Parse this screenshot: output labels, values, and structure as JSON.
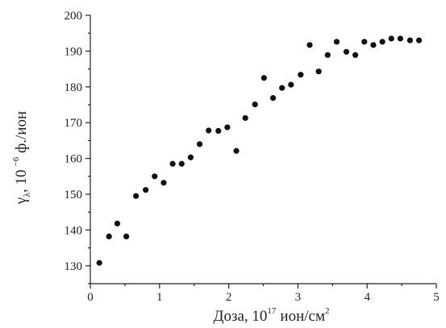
{
  "chart_data": {
    "type": "scatter",
    "title": "",
    "xlabel": {
      "prefix": "Доза, 10",
      "exponent": "17",
      "unit": "ион/см",
      "unit_power": "2"
    },
    "ylabel": {
      "symbol": "γ",
      "subscript": "λ",
      "middle": ", 10",
      "exponent": "−6",
      "unit": " ф./ион"
    },
    "xlim": [
      0,
      5
    ],
    "ylim": [
      125,
      200
    ],
    "x_ticks": [
      0,
      1,
      2,
      3,
      4,
      5
    ],
    "x_tick_labels": [
      "0",
      "1",
      "2",
      "3",
      "4",
      "5"
    ],
    "y_ticks": [
      130,
      140,
      150,
      160,
      170,
      180,
      190,
      200
    ],
    "y_tick_labels": [
      "130",
      "140",
      "150",
      "160",
      "170",
      "180",
      "190",
      "200"
    ],
    "grid": false,
    "marker_color": "#111111",
    "series": [
      {
        "points": [
          {
            "x": 0.13,
            "y": 130.8
          },
          {
            "x": 0.27,
            "y": 138.2
          },
          {
            "x": 0.39,
            "y": 141.8
          },
          {
            "x": 0.52,
            "y": 138.2
          },
          {
            "x": 0.66,
            "y": 149.5
          },
          {
            "x": 0.8,
            "y": 151.2
          },
          {
            "x": 0.93,
            "y": 155.0
          },
          {
            "x": 1.06,
            "y": 153.2
          },
          {
            "x": 1.19,
            "y": 158.5
          },
          {
            "x": 1.32,
            "y": 158.5
          },
          {
            "x": 1.45,
            "y": 160.3
          },
          {
            "x": 1.58,
            "y": 164.0
          },
          {
            "x": 1.71,
            "y": 167.8
          },
          {
            "x": 1.85,
            "y": 167.7
          },
          {
            "x": 1.98,
            "y": 168.7
          },
          {
            "x": 2.11,
            "y": 162.1
          },
          {
            "x": 2.24,
            "y": 171.3
          },
          {
            "x": 2.38,
            "y": 175.1
          },
          {
            "x": 2.51,
            "y": 182.5
          },
          {
            "x": 2.64,
            "y": 176.9
          },
          {
            "x": 2.77,
            "y": 179.7
          },
          {
            "x": 2.9,
            "y": 180.6
          },
          {
            "x": 3.04,
            "y": 183.4
          },
          {
            "x": 3.17,
            "y": 191.7
          },
          {
            "x": 3.3,
            "y": 184.3
          },
          {
            "x": 3.43,
            "y": 188.9
          },
          {
            "x": 3.56,
            "y": 192.6
          },
          {
            "x": 3.7,
            "y": 189.8
          },
          {
            "x": 3.83,
            "y": 188.9
          },
          {
            "x": 3.96,
            "y": 192.6
          },
          {
            "x": 4.09,
            "y": 191.7
          },
          {
            "x": 4.22,
            "y": 192.6
          },
          {
            "x": 4.35,
            "y": 193.5
          },
          {
            "x": 4.48,
            "y": 193.5
          },
          {
            "x": 4.62,
            "y": 193.0
          },
          {
            "x": 4.75,
            "y": 193.0
          }
        ]
      }
    ]
  }
}
